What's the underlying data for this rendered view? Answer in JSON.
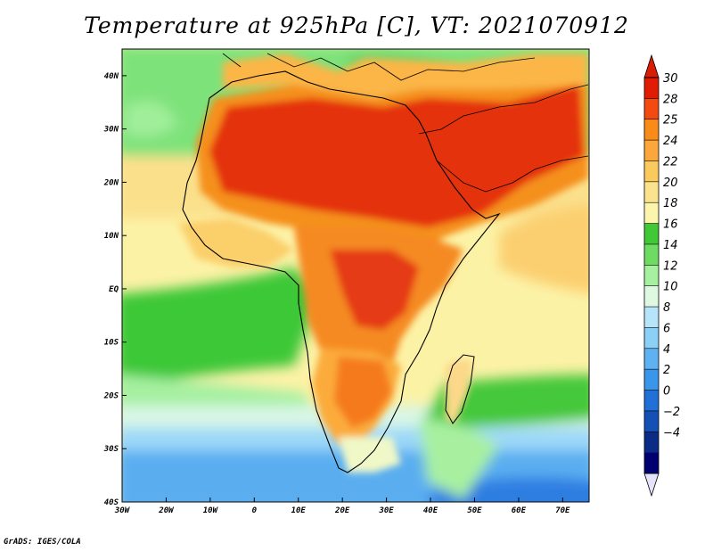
{
  "title": "Temperature at 925hPa [C], VT: 2021070912",
  "credit": "GrADS: IGES/COLA",
  "map": {
    "lon_range": [
      -30,
      76
    ],
    "lat_range": [
      -40,
      45
    ],
    "lon_ticks": [
      {
        "value": -30,
        "label": "30W"
      },
      {
        "value": -20,
        "label": "20W"
      },
      {
        "value": -10,
        "label": "10W"
      },
      {
        "value": 0,
        "label": "0"
      },
      {
        "value": 10,
        "label": "10E"
      },
      {
        "value": 20,
        "label": "20E"
      },
      {
        "value": 30,
        "label": "30E"
      },
      {
        "value": 40,
        "label": "40E"
      },
      {
        "value": 50,
        "label": "50E"
      },
      {
        "value": 60,
        "label": "60E"
      },
      {
        "value": 70,
        "label": "70E"
      }
    ],
    "lat_ticks": [
      {
        "value": 40,
        "label": "40N"
      },
      {
        "value": 30,
        "label": "30N"
      },
      {
        "value": 20,
        "label": "20N"
      },
      {
        "value": 10,
        "label": "10N"
      },
      {
        "value": 0,
        "label": "EQ"
      },
      {
        "value": -10,
        "label": "10S"
      },
      {
        "value": -20,
        "label": "20S"
      },
      {
        "value": -30,
        "label": "30S"
      },
      {
        "value": -40,
        "label": "40S"
      }
    ]
  },
  "colorbar": {
    "labels": [
      "30",
      "28",
      "25",
      "24",
      "22",
      "20",
      "18",
      "16",
      "14",
      "12",
      "10",
      "8",
      "6",
      "4",
      "2",
      "0",
      "−2",
      "−4"
    ],
    "colors": [
      "#e01c04",
      "#f24a10",
      "#fb8b18",
      "#fba73c",
      "#fbca5c",
      "#fbe28c",
      "#fcf6ac",
      "#40c836",
      "#6edc62",
      "#a6f0a0",
      "#def8e2",
      "#b6e4fa",
      "#8cd0f6",
      "#5eb2f2",
      "#3a96ea",
      "#2070d8",
      "#1450b6",
      "#0a2c86",
      "#000070"
    ],
    "top_arrow_color": "#d81e06",
    "bottom_arrow_color": "#e6e2fa"
  }
}
